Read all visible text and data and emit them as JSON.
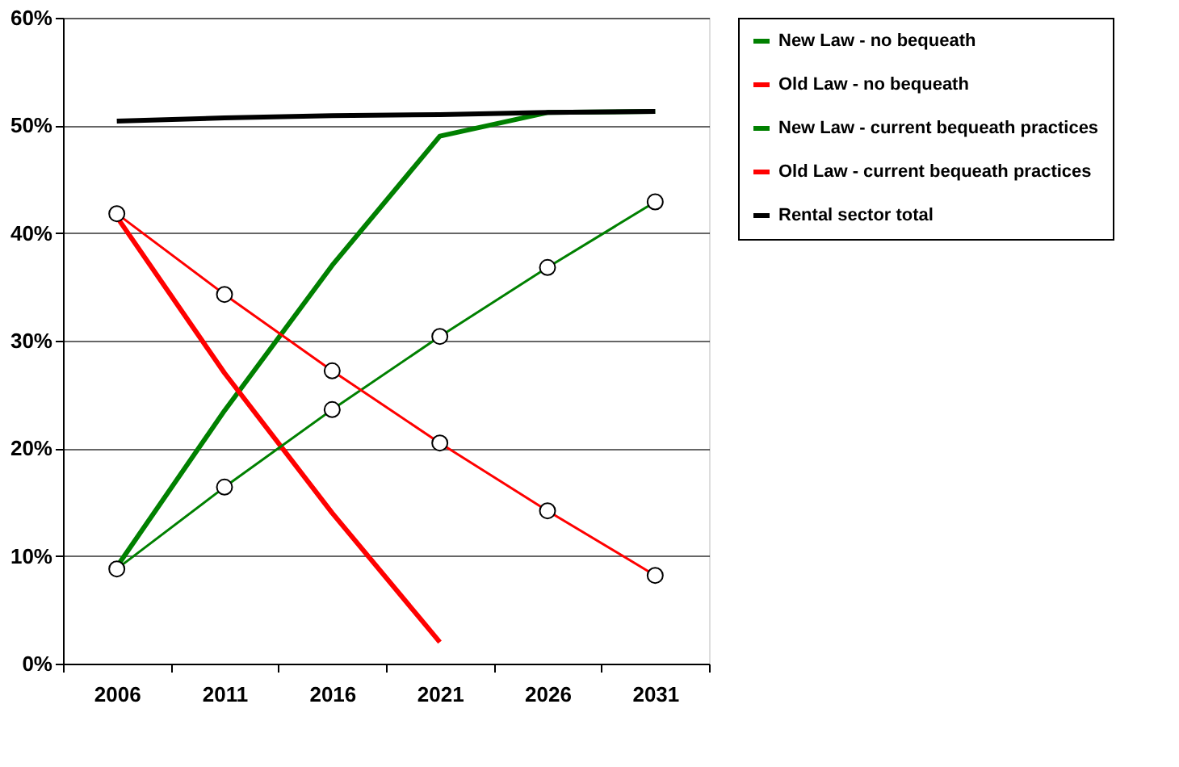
{
  "chart_data": {
    "type": "line",
    "categories": [
      "2006",
      "2011",
      "2016",
      "2021",
      "2026",
      "2031"
    ],
    "ylim": [
      0,
      60
    ],
    "yticks": [
      {
        "value": 0,
        "label": "0%"
      },
      {
        "value": 10,
        "label": "10%"
      },
      {
        "value": 20,
        "label": "20%"
      },
      {
        "value": 30,
        "label": "30%"
      },
      {
        "value": 40,
        "label": "40%"
      },
      {
        "value": 50,
        "label": "50%"
      },
      {
        "value": 60,
        "label": "60%"
      }
    ],
    "grid": "y",
    "legend": "right",
    "series": [
      {
        "name": "New Law - no bequeath",
        "color": "#008000",
        "marker": "none",
        "values": [
          9,
          23.5,
          37,
          49,
          51.2,
          51.3
        ]
      },
      {
        "name": "Old Law - no bequeath",
        "color": "#ff0000",
        "marker": "none",
        "values": [
          41.5,
          27,
          14,
          2,
          null,
          null
        ]
      },
      {
        "name": "New Law - current bequeath practices",
        "color": "#008000",
        "marker": "circle",
        "values": [
          8.8,
          16.4,
          23.6,
          30.4,
          36.8,
          42.9
        ]
      },
      {
        "name": "Old Law - current bequeath practices",
        "color": "#ff0000",
        "marker": "circle",
        "values": [
          41.8,
          34.3,
          27.2,
          20.5,
          14.2,
          8.2
        ]
      },
      {
        "name": "Rental sector total",
        "color": "#000000",
        "marker": "none",
        "values": [
          50.4,
          50.7,
          50.9,
          51.0,
          51.2,
          51.3
        ]
      }
    ]
  }
}
